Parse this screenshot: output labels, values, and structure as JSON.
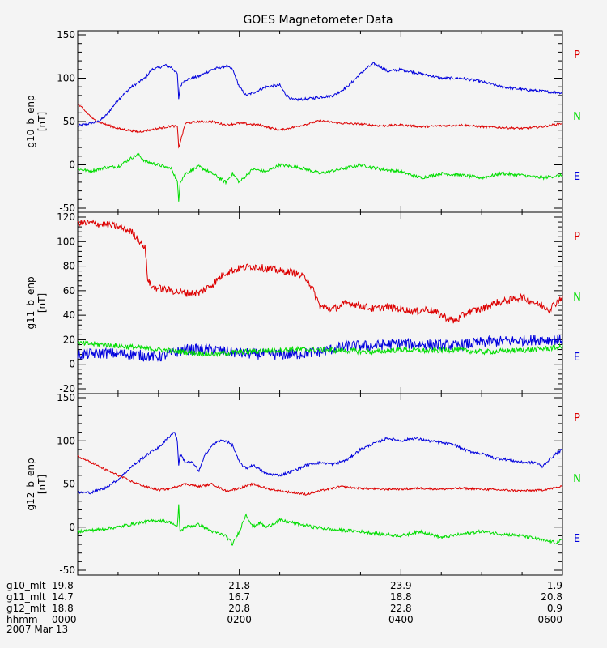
{
  "chart_data": {
    "type": "line",
    "title": "GOES Magnetometer Data",
    "panels": [
      {
        "ylabel": "g10_b_enp",
        "yunit": "[nT]",
        "ylim": [
          -50,
          150
        ],
        "yticks": [
          -50,
          0,
          50,
          100,
          150
        ],
        "legend": [
          "P",
          "N",
          "E"
        ],
        "series": [
          {
            "name": "P",
            "color": "#dd0000",
            "x": [
              0,
              5,
              12,
              20,
              30,
              45,
              60,
              70,
              74,
              75,
              80,
              90,
              100,
              105,
              110,
              120,
              135,
              150,
              165,
              180,
              195,
              210,
              225,
              240,
              255,
              270,
              285,
              300,
              315,
              330,
              345,
              360
            ],
            "y": [
              70,
              63,
              52,
              47,
              42,
              38,
              42,
              45,
              44,
              20,
              48,
              50,
              50,
              48,
              46,
              48,
              46,
              40,
              45,
              51,
              48,
              47,
              45,
              46,
              44,
              45,
              46,
              44,
              43,
              42,
              44,
              48
            ]
          },
          {
            "name": "N",
            "color": "#00dd00",
            "x": [
              0,
              10,
              20,
              30,
              40,
              45,
              50,
              60,
              70,
              74,
              75,
              76,
              80,
              90,
              100,
              110,
              115,
              120,
              130,
              140,
              150,
              160,
              170,
              180,
              195,
              210,
              225,
              240,
              255,
              270,
              285,
              300,
              315,
              330,
              345,
              360
            ],
            "y": [
              -5,
              -7,
              -3,
              -2,
              8,
              12,
              4,
              0,
              -5,
              -20,
              -42,
              -20,
              -10,
              -2,
              -10,
              -20,
              -10,
              -20,
              -5,
              -8,
              0,
              -2,
              -5,
              -10,
              -5,
              0,
              -5,
              -8,
              -15,
              -10,
              -12,
              -15,
              -10,
              -12,
              -15,
              -12
            ]
          },
          {
            "name": "E",
            "color": "#0000dd",
            "x": [
              0,
              10,
              15,
              20,
              25,
              30,
              40,
              50,
              55,
              60,
              65,
              70,
              74,
              75,
              76,
              78,
              80,
              90,
              100,
              110,
              115,
              120,
              125,
              130,
              140,
              150,
              155,
              160,
              170,
              180,
              190,
              200,
              210,
              215,
              220,
              225,
              230,
              240,
              255,
              270,
              285,
              300,
              315,
              330,
              345,
              360
            ],
            "y": [
              45,
              48,
              50,
              55,
              65,
              75,
              90,
              100,
              110,
              112,
              115,
              112,
              105,
              75,
              90,
              95,
              98,
              102,
              110,
              114,
              110,
              90,
              80,
              83,
              90,
              92,
              80,
              75,
              76,
              78,
              80,
              90,
              105,
              112,
              117,
              113,
              108,
              110,
              105,
              100,
              100,
              96,
              90,
              87,
              85,
              83
            ]
          }
        ]
      },
      {
        "ylabel": "g11_b_enp",
        "yunit": "[nT]",
        "ylim": [
          -20,
          120
        ],
        "yticks": [
          -20,
          0,
          20,
          40,
          60,
          80,
          100,
          120
        ],
        "legend": [
          "P",
          "N",
          "E"
        ],
        "series": [
          {
            "name": "P",
            "color": "#dd0000",
            "x": [
              0,
              10,
              20,
              30,
              40,
              45,
              50,
              52,
              55,
              60,
              70,
              80,
              90,
              100,
              110,
              120,
              130,
              140,
              150,
              160,
              170,
              175,
              180,
              190,
              200,
              210,
              220,
              230,
              240,
              250,
              260,
              270,
              280,
              290,
              300,
              310,
              320,
              330,
              340,
              350,
              360
            ],
            "y": [
              115,
              115,
              114,
              112,
              108,
              102,
              95,
              70,
              63,
              62,
              60,
              58,
              58,
              65,
              75,
              78,
              80,
              78,
              76,
              75,
              70,
              60,
              47,
              45,
              50,
              48,
              45,
              47,
              45,
              43,
              45,
              40,
              35,
              43,
              45,
              50,
              52,
              55,
              50,
              45,
              55
            ]
          },
          {
            "name": "N",
            "color": "#00dd00",
            "x": [
              0,
              20,
              40,
              60,
              80,
              100,
              120,
              140,
              160,
              180,
              200,
              220,
              240,
              260,
              280,
              300,
              320,
              340,
              360
            ],
            "y": [
              17,
              16,
              14,
              12,
              10,
              8,
              10,
              11,
              12,
              12,
              11,
              10,
              12,
              11,
              12,
              10,
              11,
              12,
              14
            ]
          },
          {
            "name": "E",
            "color": "#0000dd",
            "x": [
              0,
              20,
              40,
              60,
              80,
              100,
              120,
              140,
              160,
              180,
              200,
              220,
              240,
              260,
              280,
              300,
              320,
              340,
              360
            ],
            "y": [
              8,
              9,
              8,
              6,
              12,
              12,
              9,
              8,
              8,
              10,
              15,
              15,
              17,
              16,
              15,
              18,
              19,
              20,
              20
            ]
          }
        ]
      },
      {
        "ylabel": "g12_b_enp",
        "yunit": "[nT]",
        "ylim": [
          -50,
          150
        ],
        "yticks": [
          -50,
          0,
          50,
          100,
          150
        ],
        "legend": [
          "P",
          "N",
          "E"
        ],
        "series": [
          {
            "name": "P",
            "color": "#dd0000",
            "x": [
              0,
              10,
              20,
              30,
              40,
              50,
              60,
              70,
              75,
              80,
              90,
              100,
              110,
              120,
              130,
              140,
              150,
              160,
              170,
              180,
              195,
              210,
              225,
              240,
              255,
              270,
              285,
              300,
              315,
              330,
              345,
              360
            ],
            "y": [
              82,
              75,
              67,
              60,
              53,
              47,
              43,
              45,
              48,
              50,
              47,
              50,
              42,
              45,
              50,
              45,
              42,
              40,
              38,
              42,
              47,
              45,
              44,
              44,
              45,
              44,
              45,
              44,
              43,
              42,
              43,
              47
            ]
          },
          {
            "name": "N",
            "color": "#00dd00",
            "x": [
              0,
              15,
              30,
              45,
              60,
              70,
              74,
              75,
              76,
              80,
              90,
              100,
              110,
              115,
              120,
              125,
              130,
              135,
              140,
              150,
              160,
              175,
              190,
              210,
              225,
              240,
              255,
              270,
              285,
              300,
              315,
              330,
              345,
              355,
              360
            ],
            "y": [
              -5,
              -3,
              0,
              5,
              8,
              5,
              0,
              25,
              -5,
              0,
              3,
              -5,
              -10,
              -20,
              -5,
              15,
              0,
              5,
              0,
              8,
              5,
              0,
              -3,
              -5,
              -8,
              -10,
              -5,
              -12,
              -8,
              -5,
              -8,
              -10,
              -15,
              -18,
              -15
            ]
          },
          {
            "name": "E",
            "color": "#0000dd",
            "x": [
              0,
              10,
              20,
              30,
              40,
              50,
              55,
              60,
              65,
              70,
              72,
              74,
              75,
              76,
              80,
              85,
              90,
              95,
              100,
              105,
              110,
              115,
              120,
              125,
              130,
              140,
              150,
              160,
              170,
              180,
              190,
              200,
              210,
              220,
              230,
              240,
              250,
              260,
              270,
              280,
              290,
              300,
              310,
              320,
              330,
              340,
              345,
              350,
              355,
              360
            ],
            "y": [
              40,
              40,
              45,
              55,
              70,
              82,
              88,
              92,
              100,
              108,
              110,
              100,
              70,
              85,
              75,
              75,
              65,
              85,
              95,
              100,
              100,
              95,
              75,
              68,
              72,
              62,
              60,
              65,
              72,
              75,
              73,
              78,
              90,
              97,
              103,
              100,
              103,
              100,
              98,
              95,
              88,
              85,
              80,
              78,
              75,
              75,
              70,
              78,
              85,
              90
            ]
          }
        ]
      }
    ],
    "xlim": [
      0,
      360
    ],
    "xticks": [
      0,
      120,
      240,
      360
    ],
    "xminor": [
      30,
      60,
      90,
      150,
      180,
      210,
      270,
      300,
      330
    ],
    "footer": {
      "labels": [
        "g10_mlt",
        "g11_mlt",
        "g12_mlt",
        "hhmm",
        "2007 Mar 13"
      ],
      "columns": [
        {
          "g10": "19.8",
          "g11": "14.7",
          "g12": "18.8",
          "hhmm": "0000"
        },
        {
          "g10": "21.8",
          "g11": "16.7",
          "g12": "20.8",
          "hhmm": "0200"
        },
        {
          "g10": "23.9",
          "g11": "18.8",
          "g12": "22.8",
          "hhmm": "0400"
        },
        {
          "g10": "1.9",
          "g11": "20.8",
          "g12": "0.9",
          "hhmm": "0600"
        }
      ]
    }
  }
}
